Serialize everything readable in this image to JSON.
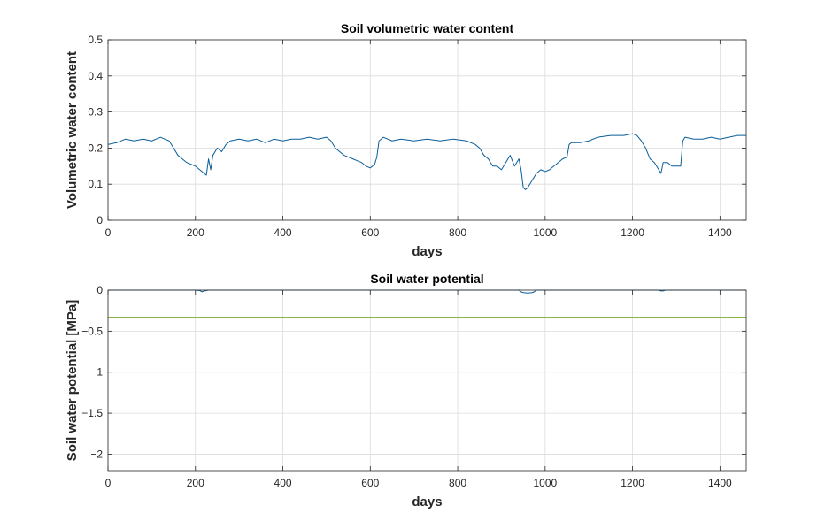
{
  "chart_data": [
    {
      "type": "line",
      "title": "Soil volumetric water content",
      "xlabel": "days",
      "ylabel": "Volumetric water content",
      "xlim": [
        0,
        1460
      ],
      "ylim": [
        0,
        0.5
      ],
      "xticks": [
        0,
        200,
        400,
        600,
        800,
        1000,
        1200,
        1400
      ],
      "xtick_labels": [
        "0",
        "200",
        "400",
        "600",
        "800",
        "1000",
        "1200",
        "1400"
      ],
      "yticks": [
        0,
        0.1,
        0.2,
        0.3,
        0.4,
        0.5
      ],
      "ytick_labels": [
        "0",
        "0.1",
        "0.2",
        "0.3",
        "0.4",
        "0.5"
      ],
      "grid": true,
      "colors": [
        "#0a5e9a"
      ],
      "series": [
        {
          "x": [
            0,
            20,
            40,
            60,
            80,
            100,
            120,
            130,
            140,
            150,
            160,
            170,
            180,
            190,
            200,
            210,
            220,
            225,
            230,
            235,
            240,
            250,
            260,
            270,
            280,
            300,
            320,
            340,
            360,
            380,
            400,
            420,
            440,
            460,
            480,
            500,
            510,
            520,
            530,
            540,
            550,
            560,
            570,
            580,
            590,
            600,
            610,
            615,
            620,
            630,
            650,
            670,
            700,
            730,
            760,
            790,
            820,
            840,
            850,
            860,
            870,
            880,
            890,
            900,
            910,
            920,
            930,
            940,
            945,
            950,
            955,
            960,
            970,
            980,
            990,
            1000,
            1010,
            1020,
            1030,
            1040,
            1050,
            1055,
            1060,
            1080,
            1100,
            1120,
            1150,
            1180,
            1200,
            1210,
            1220,
            1230,
            1240,
            1250,
            1260,
            1265,
            1270,
            1280,
            1290,
            1300,
            1310,
            1315,
            1320,
            1340,
            1360,
            1380,
            1400,
            1420,
            1440,
            1460
          ],
          "y": [
            0.21,
            0.215,
            0.225,
            0.22,
            0.225,
            0.22,
            0.23,
            0.225,
            0.22,
            0.2,
            0.18,
            0.17,
            0.16,
            0.155,
            0.15,
            0.14,
            0.13,
            0.125,
            0.17,
            0.14,
            0.18,
            0.2,
            0.19,
            0.21,
            0.22,
            0.225,
            0.22,
            0.225,
            0.215,
            0.225,
            0.22,
            0.225,
            0.225,
            0.23,
            0.225,
            0.23,
            0.22,
            0.2,
            0.19,
            0.18,
            0.175,
            0.17,
            0.165,
            0.16,
            0.15,
            0.145,
            0.155,
            0.175,
            0.22,
            0.23,
            0.22,
            0.225,
            0.22,
            0.225,
            0.22,
            0.225,
            0.22,
            0.21,
            0.2,
            0.18,
            0.17,
            0.15,
            0.15,
            0.14,
            0.16,
            0.18,
            0.15,
            0.17,
            0.14,
            0.09,
            0.085,
            0.09,
            0.11,
            0.13,
            0.14,
            0.135,
            0.14,
            0.15,
            0.16,
            0.17,
            0.175,
            0.21,
            0.215,
            0.215,
            0.22,
            0.23,
            0.235,
            0.235,
            0.24,
            0.235,
            0.22,
            0.2,
            0.17,
            0.16,
            0.14,
            0.13,
            0.16,
            0.16,
            0.15,
            0.15,
            0.15,
            0.22,
            0.23,
            0.225,
            0.225,
            0.23,
            0.225,
            0.23,
            0.235,
            0.235
          ]
        }
      ]
    },
    {
      "type": "line",
      "title": "Soil water potential",
      "xlabel": "days",
      "ylabel": "Soil water potential [MPa]",
      "xlim": [
        0,
        1460
      ],
      "ylim": [
        -2.2,
        0
      ],
      "xticks": [
        0,
        200,
        400,
        600,
        800,
        1000,
        1200,
        1400
      ],
      "xtick_labels": [
        "0",
        "200",
        "400",
        "600",
        "800",
        "1000",
        "1200",
        "1400"
      ],
      "yticks": [
        0,
        -0.5,
        -1,
        -1.5,
        -2
      ],
      "ytick_labels": [
        "0",
        "-0.5",
        "-1",
        "-1.5",
        "-2"
      ],
      "grid": true,
      "colors": [
        "#0a5e9a",
        "#77ac30"
      ],
      "series": [
        {
          "x": [
            0,
            200,
            210,
            215,
            220,
            230,
            400,
            600,
            800,
            940,
            945,
            950,
            960,
            970,
            975,
            980,
            1000,
            1200,
            1260,
            1265,
            1270,
            1275,
            1280,
            1460
          ],
          "y": [
            0,
            0,
            -0.005,
            -0.02,
            -0.01,
            0,
            0,
            0,
            0,
            0,
            -0.02,
            -0.03,
            -0.035,
            -0.03,
            -0.02,
            0,
            0,
            0,
            0,
            -0.01,
            -0.01,
            0,
            0,
            0
          ]
        },
        {
          "x": [
            0,
            1460
          ],
          "y": [
            -0.33,
            -0.33
          ]
        }
      ]
    }
  ]
}
